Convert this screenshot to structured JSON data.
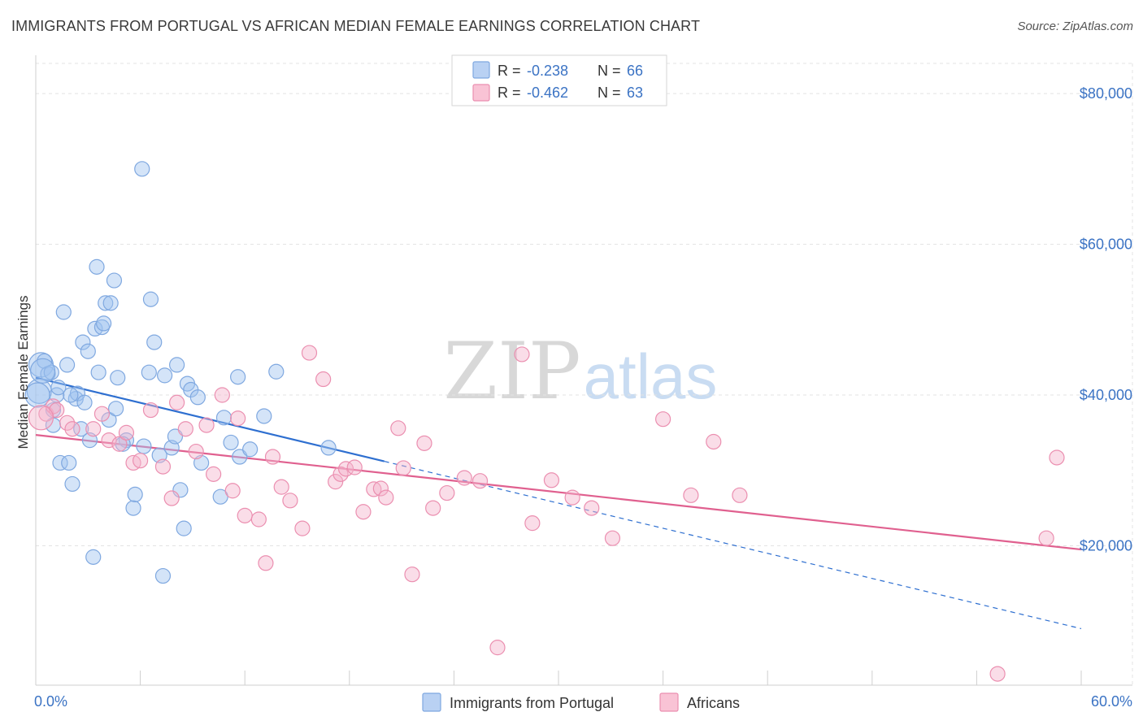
{
  "title": "IMMIGRANTS FROM PORTUGAL VS AFRICAN MEDIAN FEMALE EARNINGS CORRELATION CHART",
  "source": "Source: ZipAtlas.com",
  "watermark": {
    "zip": "ZIP",
    "atlas": "atlas"
  },
  "colors": {
    "blue": "#7fa8e0",
    "blue_fill": "rgba(160,195,240,0.45)",
    "blue_line": "#2e6fd0",
    "pink": "#eb8fb0",
    "pink_fill": "rgba(245,180,205,0.45)",
    "pink_line": "#e0608f"
  },
  "legend": {
    "r_label": "R =",
    "n_label": "N =",
    "series": [
      {
        "r": "-0.238",
        "n": "66"
      },
      {
        "r": "-0.462",
        "n": "63"
      }
    ]
  },
  "chart_data": {
    "type": "scatter",
    "ylabel": "Median Female Earnings",
    "x_tick_labels": [
      "0.0%",
      "60.0%"
    ],
    "y_tick_labels": [
      "$20,000",
      "$40,000",
      "$60,000",
      "$80,000"
    ],
    "y_ticks": [
      20000,
      40000,
      60000,
      80000
    ],
    "xlim": [
      0,
      60
    ],
    "ylim": [
      1500,
      84000
    ],
    "series": [
      {
        "name": "Immigrants from Portugal",
        "points": [
          [
            0.2,
            40500
          ],
          [
            0.3,
            44000
          ],
          [
            0.5,
            44500
          ],
          [
            0.7,
            42800
          ],
          [
            0.9,
            43000
          ],
          [
            1.0,
            38000
          ],
          [
            1.0,
            36000
          ],
          [
            1.2,
            40000
          ],
          [
            1.3,
            41000
          ],
          [
            1.4,
            31000
          ],
          [
            1.6,
            51000
          ],
          [
            1.8,
            44000
          ],
          [
            1.9,
            31000
          ],
          [
            2.1,
            28200
          ],
          [
            2.3,
            39500
          ],
          [
            2.4,
            40200
          ],
          [
            2.6,
            35500
          ],
          [
            2.7,
            47000
          ],
          [
            2.8,
            39000
          ],
          [
            3.0,
            45800
          ],
          [
            3.1,
            34000
          ],
          [
            3.3,
            18500
          ],
          [
            3.4,
            48800
          ],
          [
            3.5,
            57000
          ],
          [
            3.6,
            43000
          ],
          [
            3.8,
            49000
          ],
          [
            3.9,
            49500
          ],
          [
            4.0,
            52200
          ],
          [
            4.2,
            36700
          ],
          [
            4.3,
            52200
          ],
          [
            4.5,
            55200
          ],
          [
            4.6,
            38200
          ],
          [
            4.7,
            42300
          ],
          [
            5.2,
            34000
          ],
          [
            5.6,
            25000
          ],
          [
            5.7,
            26800
          ],
          [
            6.1,
            70000
          ],
          [
            6.2,
            33200
          ],
          [
            6.5,
            43000
          ],
          [
            6.6,
            52700
          ],
          [
            6.8,
            47000
          ],
          [
            7.1,
            32000
          ],
          [
            7.3,
            16000
          ],
          [
            7.4,
            42600
          ],
          [
            7.8,
            33000
          ],
          [
            8.0,
            34500
          ],
          [
            8.1,
            44000
          ],
          [
            8.3,
            27400
          ],
          [
            8.5,
            22300
          ],
          [
            8.7,
            41500
          ],
          [
            8.9,
            40700
          ],
          [
            9.3,
            39700
          ],
          [
            9.5,
            31000
          ],
          [
            10.6,
            26500
          ],
          [
            10.8,
            37000
          ],
          [
            11.2,
            33700
          ],
          [
            11.6,
            42400
          ],
          [
            11.7,
            31800
          ],
          [
            12.3,
            32800
          ],
          [
            13.1,
            37200
          ],
          [
            13.8,
            43100
          ],
          [
            16.8,
            33000
          ],
          [
            0.1,
            40000
          ],
          [
            0.4,
            43200
          ],
          [
            2.0,
            40000
          ],
          [
            5.0,
            33500
          ]
        ]
      },
      {
        "name": "Africans",
        "points": [
          [
            0.6,
            37500
          ],
          [
            1.0,
            38500
          ],
          [
            1.2,
            38000
          ],
          [
            1.8,
            36300
          ],
          [
            2.1,
            35500
          ],
          [
            3.3,
            35500
          ],
          [
            3.8,
            37500
          ],
          [
            4.2,
            34000
          ],
          [
            4.8,
            33500
          ],
          [
            5.2,
            35000
          ],
          [
            5.6,
            31000
          ],
          [
            6.0,
            31300
          ],
          [
            6.6,
            38000
          ],
          [
            7.3,
            30500
          ],
          [
            7.8,
            26300
          ],
          [
            8.1,
            39000
          ],
          [
            8.6,
            35500
          ],
          [
            9.2,
            32500
          ],
          [
            9.8,
            36000
          ],
          [
            10.2,
            29500
          ],
          [
            10.7,
            40000
          ],
          [
            11.3,
            27300
          ],
          [
            11.6,
            36900
          ],
          [
            12.0,
            24000
          ],
          [
            12.8,
            23500
          ],
          [
            13.2,
            17700
          ],
          [
            13.6,
            31800
          ],
          [
            14.1,
            27800
          ],
          [
            14.6,
            26000
          ],
          [
            15.3,
            22300
          ],
          [
            15.7,
            45600
          ],
          [
            16.5,
            42100
          ],
          [
            17.2,
            28500
          ],
          [
            17.5,
            29500
          ],
          [
            17.8,
            30200
          ],
          [
            18.3,
            30400
          ],
          [
            18.8,
            24500
          ],
          [
            19.4,
            27500
          ],
          [
            19.8,
            27600
          ],
          [
            20.1,
            26400
          ],
          [
            20.8,
            35600
          ],
          [
            21.1,
            30300
          ],
          [
            21.6,
            16200
          ],
          [
            22.3,
            33600
          ],
          [
            22.8,
            25000
          ],
          [
            23.6,
            27000
          ],
          [
            24.6,
            29000
          ],
          [
            25.5,
            28600
          ],
          [
            26.5,
            6500
          ],
          [
            27.9,
            45400
          ],
          [
            28.5,
            23000
          ],
          [
            29.6,
            28700
          ],
          [
            30.8,
            26400
          ],
          [
            31.9,
            25000
          ],
          [
            33.1,
            21000
          ],
          [
            36.0,
            36800
          ],
          [
            37.6,
            26700
          ],
          [
            38.9,
            33800
          ],
          [
            40.4,
            26700
          ],
          [
            55.2,
            3000
          ],
          [
            58.0,
            21000
          ],
          [
            58.6,
            31700
          ],
          [
            0.3,
            37000
          ]
        ]
      }
    ],
    "trendlines": [
      {
        "series": "Immigrants from Portugal",
        "solid_x": [
          0,
          20
        ],
        "dashed_x": [
          20,
          60
        ],
        "y_at_0": 42300,
        "y_at_60": 9000
      },
      {
        "series": "Africans",
        "x": [
          0,
          60
        ],
        "y_at_0": 34700,
        "y_at_60": 19500
      }
    ]
  }
}
